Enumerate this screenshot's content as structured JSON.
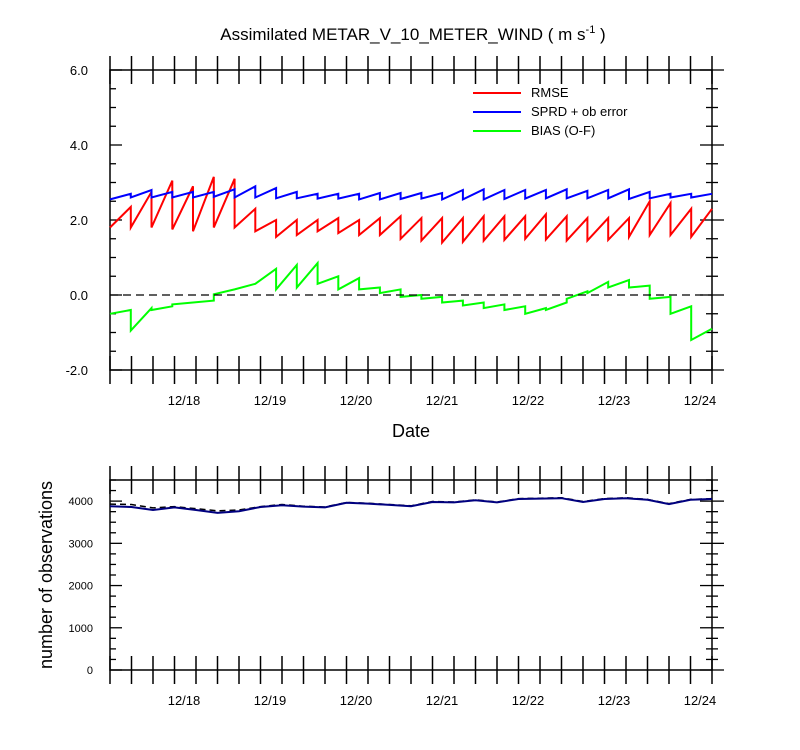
{
  "title": {
    "main": "Assimilated METAR_V_10_METER_WIND ( m s",
    "superscript": "-1",
    "close": " )"
  },
  "chart_data": [
    {
      "type": "line",
      "xlabel": "Date",
      "ylabel": "",
      "ylim": [
        -2.0,
        6.0
      ],
      "yticks": [
        "6.0",
        "4.0",
        "2.0",
        "0.0",
        "-2.0"
      ],
      "x_range_days": [
        17.0,
        24.0
      ],
      "x_tick_labels": [
        "12/18",
        "12/19",
        "12/20",
        "12/21",
        "12/22",
        "12/23",
        "12/24"
      ],
      "x_tick_days": [
        18,
        19,
        20,
        21,
        22,
        23,
        24
      ],
      "legend_position": "top-right",
      "zero_line": "dashed",
      "series": [
        {
          "name": "RMSE",
          "color": "#ff0000",
          "sawtooth": true,
          "prior": [
            1.8,
            1.8,
            1.8,
            1.75,
            1.7,
            1.8,
            1.8,
            1.7,
            1.55,
            1.6,
            1.7,
            1.65,
            1.6,
            1.6,
            1.5,
            1.45,
            1.4,
            1.42,
            1.45,
            1.47,
            1.5,
            1.48,
            1.45,
            1.45,
            1.47,
            1.55,
            1.6,
            1.6,
            1.55
          ],
          "posterior": [
            2.35,
            2.75,
            3.05,
            2.9,
            3.15,
            3.1,
            2.3,
            2.0,
            2.0,
            2.0,
            2.05,
            2.0,
            2.05,
            2.1,
            2.05,
            2.05,
            2.05,
            2.1,
            2.1,
            2.1,
            2.15,
            2.1,
            2.05,
            2.05,
            2.05,
            2.5,
            2.45,
            2.3,
            2.3
          ]
        },
        {
          "name": "SPRD + ob error",
          "color": "#0000ff",
          "sawtooth": true,
          "prior": [
            2.55,
            2.6,
            2.6,
            2.6,
            2.6,
            2.62,
            2.6,
            2.6,
            2.58,
            2.58,
            2.57,
            2.57,
            2.55,
            2.55,
            2.56,
            2.57,
            2.55,
            2.55,
            2.55,
            2.56,
            2.57,
            2.58,
            2.58,
            2.58,
            2.58,
            2.56,
            2.58,
            2.6,
            2.6
          ],
          "posterior": [
            2.7,
            2.8,
            2.75,
            2.75,
            2.75,
            2.82,
            2.9,
            2.85,
            2.75,
            2.7,
            2.7,
            2.7,
            2.72,
            2.72,
            2.72,
            2.72,
            2.8,
            2.82,
            2.8,
            2.8,
            2.8,
            2.82,
            2.78,
            2.8,
            2.82,
            2.75,
            2.7,
            2.7,
            2.7
          ]
        },
        {
          "name": "BIAS (O-F)",
          "color": "#00ff00",
          "sawtooth": true,
          "prior": [
            -0.5,
            -0.95,
            -0.4,
            -0.25,
            -0.2,
            0.02,
            0.15,
            0.3,
            0.15,
            0.2,
            0.3,
            0.15,
            0.15,
            0.05,
            -0.05,
            -0.1,
            -0.2,
            -0.28,
            -0.35,
            -0.4,
            -0.5,
            -0.4,
            -0.1,
            0.05,
            0.2,
            0.2,
            -0.1,
            -0.5,
            -1.2
          ],
          "posterior": [
            -0.4,
            -0.35,
            -0.3,
            -0.2,
            -0.15,
            0.15,
            0.3,
            0.7,
            0.8,
            0.85,
            0.5,
            0.45,
            0.2,
            0.15,
            0.0,
            -0.05,
            -0.15,
            -0.2,
            -0.25,
            -0.3,
            -0.35,
            -0.2,
            0.1,
            0.35,
            0.4,
            0.25,
            -0.05,
            -0.3,
            -0.9
          ]
        }
      ]
    },
    {
      "type": "line",
      "xlabel": "",
      "ylabel": "number of observations",
      "ylim": [
        0,
        4500
      ],
      "yticks": [
        "4000",
        "3000",
        "2000",
        "1000",
        "0"
      ],
      "ytick_values": [
        4000,
        3000,
        2000,
        1000,
        0
      ],
      "x_range_days": [
        17.0,
        24.0
      ],
      "x_tick_labels": [
        "12/18",
        "12/19",
        "12/20",
        "12/21",
        "12/22",
        "12/23",
        "12/24"
      ],
      "x_tick_days": [
        18,
        19,
        20,
        21,
        22,
        23,
        24
      ],
      "series": [
        {
          "style": "dashed",
          "color": "#000000",
          "values": [
            3930,
            3920,
            3840,
            3870,
            3820,
            3770,
            3790,
            3870,
            3920,
            3880,
            3860,
            3970,
            3950,
            3920,
            3890,
            3990,
            3980,
            4030,
            3980,
            4060,
            4070,
            4080,
            3990,
            4060,
            4080,
            4040,
            3940,
            4040,
            4060
          ]
        },
        {
          "style": "solid",
          "color": "#00007f",
          "values": [
            3880,
            3860,
            3790,
            3850,
            3790,
            3720,
            3760,
            3860,
            3900,
            3870,
            3850,
            3960,
            3940,
            3910,
            3880,
            3980,
            3970,
            4020,
            3970,
            4050,
            4060,
            4070,
            3980,
            4050,
            4070,
            4030,
            3930,
            4030,
            4050
          ]
        }
      ]
    }
  ]
}
